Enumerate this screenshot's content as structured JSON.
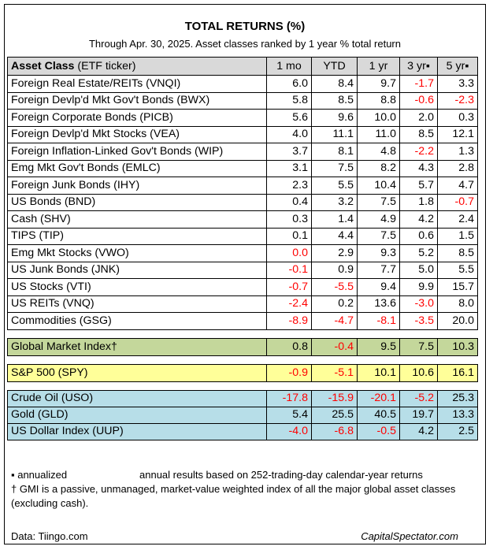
{
  "title": "TOTAL RETURNS (%)",
  "subtitle": "Through Apr. 30, 2025. Asset classes ranked by 1 year % total return",
  "columns": {
    "name_bold": "Asset Class",
    "name_rest": " (ETF ticker)",
    "c1": "1 mo",
    "c2": "YTD",
    "c3": "1 yr",
    "c4": "3 yr▪",
    "c5": "5 yr▪"
  },
  "chart_data": {
    "type": "table",
    "title": "TOTAL RETURNS (%)",
    "columns": [
      "Asset Class (ETF ticker)",
      "1 mo",
      "YTD",
      "1 yr",
      "3 yr▪",
      "5 yr▪"
    ],
    "asset_classes": [
      {
        "name": "Foreign Real Estate/REITs (VNQI)",
        "values": [
          "6.0",
          "8.4",
          "9.7",
          "-1.7",
          "3.3"
        ]
      },
      {
        "name": "Foreign Devlp'd Mkt Gov't Bonds (BWX)",
        "values": [
          "5.8",
          "8.5",
          "8.8",
          "-0.6",
          "-2.3"
        ]
      },
      {
        "name": "Foreign Corporate Bonds (PICB)",
        "values": [
          "5.6",
          "9.6",
          "10.0",
          "2.0",
          "0.3"
        ]
      },
      {
        "name": "Foreign Devlp'd Mkt Stocks (VEA)",
        "values": [
          "4.0",
          "11.1",
          "11.0",
          "8.5",
          "12.1"
        ]
      },
      {
        "name": "Foreign Inflation-Linked Gov't Bonds (WIP)",
        "values": [
          "3.7",
          "8.1",
          "4.8",
          "-2.2",
          "1.3"
        ]
      },
      {
        "name": "Emg Mkt Gov't Bonds (EMLC)",
        "values": [
          "3.1",
          "7.5",
          "8.2",
          "4.3",
          "2.8"
        ]
      },
      {
        "name": "Foreign Junk Bonds (IHY)",
        "values": [
          "2.3",
          "5.5",
          "10.4",
          "5.7",
          "4.7"
        ]
      },
      {
        "name": "US Bonds (BND)",
        "values": [
          "0.4",
          "3.2",
          "7.5",
          "1.8",
          "-0.7"
        ]
      },
      {
        "name": "Cash (SHV)",
        "values": [
          "0.3",
          "1.4",
          "4.9",
          "4.2",
          "2.4"
        ]
      },
      {
        "name": "TIPS (TIP)",
        "values": [
          "0.1",
          "4.4",
          "7.5",
          "0.6",
          "1.5"
        ]
      },
      {
        "name": "Emg Mkt Stocks (VWO)",
        "values": [
          "0.0",
          "2.9",
          "9.3",
          "5.2",
          "8.5"
        ]
      },
      {
        "name": "US Junk Bonds (JNK)",
        "values": [
          "-0.1",
          "0.9",
          "7.7",
          "5.0",
          "5.5"
        ]
      },
      {
        "name": "US Stocks (VTI)",
        "values": [
          "-0.7",
          "-5.5",
          "9.4",
          "9.9",
          "15.7"
        ]
      },
      {
        "name": "US REITs (VNQ)",
        "values": [
          "-2.4",
          "0.2",
          "13.6",
          "-3.0",
          "8.0"
        ]
      },
      {
        "name": "Commodities (GSG)",
        "values": [
          "-8.9",
          "-4.7",
          "-8.1",
          "-3.5",
          "20.0"
        ]
      }
    ],
    "gmi": {
      "name": "Global Market Index†",
      "values": [
        "0.8",
        "-0.4",
        "9.5",
        "7.5",
        "10.3"
      ]
    },
    "spy": {
      "name": "S&P 500 (SPY)",
      "values": [
        "-0.9",
        "-5.1",
        "10.1",
        "10.6",
        "16.1"
      ]
    },
    "other": [
      {
        "name": "Crude Oil (USO)",
        "values": [
          "-17.8",
          "-15.9",
          "-20.1",
          "-5.2",
          "25.3"
        ]
      },
      {
        "name": "Gold (GLD)",
        "values": [
          "5.4",
          "25.5",
          "40.5",
          "19.7",
          "13.3"
        ]
      },
      {
        "name": "US Dollar Index (UUP)",
        "values": [
          "-4.0",
          "-6.8",
          "-0.5",
          "4.2",
          "2.5"
        ]
      }
    ],
    "highlight_colors": {
      "header": "#d9d9d9",
      "gmi": "#c4d79b",
      "spy": "#ffff99",
      "other": "#b7dee8",
      "negative": "#ff0000",
      "zero_red": "#ff0000"
    },
    "red_zero_cells": [
      [
        "Emg Mkt Stocks (VWO)",
        0
      ]
    ]
  },
  "notes": {
    "annualized": "▪ annualized",
    "annual_results": "annual results based on 252-trading-day calendar-year returns",
    "gmi_note": "† GMI is a passive, unmanaged, market-value weighted index of all the major global asset classes (excluding cash)."
  },
  "source": "Data: Tiingo.com",
  "brand": "CapitalSpectator.com"
}
